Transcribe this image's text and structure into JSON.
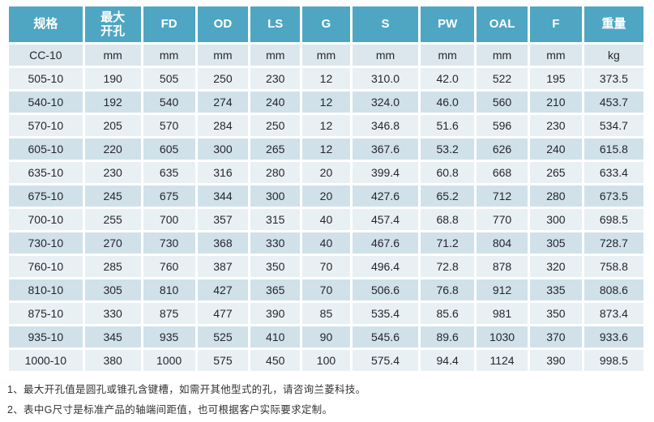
{
  "table": {
    "headers": [
      "规格",
      "最大开孔",
      "FD",
      "OD",
      "LS",
      "G",
      "S",
      "PW",
      "OAL",
      "F",
      "重量"
    ],
    "units_row": [
      "CC-10",
      "mm",
      "mm",
      "mm",
      "mm",
      "mm",
      "mm",
      "mm",
      "mm",
      "mm",
      "kg"
    ],
    "rows": [
      [
        "505-10",
        "190",
        "505",
        "250",
        "230",
        "12",
        "310.0",
        "42.0",
        "522",
        "195",
        "373.5"
      ],
      [
        "540-10",
        "192",
        "540",
        "274",
        "240",
        "12",
        "324.0",
        "46.0",
        "560",
        "210",
        "453.7"
      ],
      [
        "570-10",
        "205",
        "570",
        "284",
        "250",
        "12",
        "346.8",
        "51.6",
        "596",
        "230",
        "534.7"
      ],
      [
        "605-10",
        "220",
        "605",
        "300",
        "265",
        "12",
        "367.6",
        "53.2",
        "626",
        "240",
        "615.8"
      ],
      [
        "635-10",
        "230",
        "635",
        "316",
        "280",
        "20",
        "399.4",
        "60.8",
        "668",
        "265",
        "633.4"
      ],
      [
        "675-10",
        "245",
        "675",
        "344",
        "300",
        "20",
        "427.6",
        "65.2",
        "712",
        "280",
        "673.5"
      ],
      [
        "700-10",
        "255",
        "700",
        "357",
        "315",
        "40",
        "457.4",
        "68.8",
        "770",
        "300",
        "698.5"
      ],
      [
        "730-10",
        "270",
        "730",
        "368",
        "330",
        "40",
        "467.6",
        "71.2",
        "804",
        "305",
        "728.7"
      ],
      [
        "760-10",
        "285",
        "760",
        "387",
        "350",
        "70",
        "496.4",
        "72.8",
        "878",
        "320",
        "758.8"
      ],
      [
        "810-10",
        "305",
        "810",
        "427",
        "365",
        "70",
        "506.6",
        "76.8",
        "912",
        "335",
        "808.6"
      ],
      [
        "875-10",
        "330",
        "875",
        "477",
        "390",
        "85",
        "535.4",
        "85.6",
        "981",
        "350",
        "873.4"
      ],
      [
        "935-10",
        "345",
        "935",
        "525",
        "410",
        "90",
        "545.6",
        "89.6",
        "1030",
        "370",
        "933.6"
      ],
      [
        "1000-10",
        "380",
        "1000",
        "575",
        "450",
        "100",
        "575.4",
        "94.4",
        "1124",
        "390",
        "998.5"
      ]
    ]
  },
  "notes": [
    "1、最大开孔值是圆孔或锥孔含键槽，如需开其他型式的孔，请咨询兰菱科技。",
    "2、表中G尺寸是标准产品的轴端间距值，也可根据客户实际要求定制。"
  ],
  "colors": {
    "header_bg": "#4ea6c3",
    "header_text": "#ffffff",
    "row_light": "#e9f0f3",
    "row_dark": "#d0e1e9",
    "units_bg": "#dbe7ec",
    "cell_text": "#26262e"
  }
}
